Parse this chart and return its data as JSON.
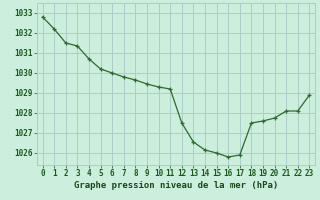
{
  "x": [
    0,
    1,
    2,
    3,
    4,
    5,
    6,
    7,
    8,
    9,
    10,
    11,
    12,
    13,
    14,
    15,
    16,
    17,
    18,
    19,
    20,
    21,
    22,
    23
  ],
  "y": [
    1032.8,
    1032.2,
    1031.5,
    1031.35,
    1030.7,
    1030.2,
    1030.0,
    1029.8,
    1029.65,
    1029.45,
    1029.3,
    1029.2,
    1027.5,
    1026.55,
    1026.15,
    1026.0,
    1025.8,
    1025.9,
    1027.5,
    1027.6,
    1027.75,
    1028.1,
    1028.1,
    1028.9
  ],
  "line_color": "#2d6a2d",
  "marker": "+",
  "bg_color": "#cceedd",
  "grid_color": "#aacccc",
  "xlabel": "Graphe pression niveau de la mer (hPa)",
  "xlabel_color": "#1a4a1a",
  "tick_color": "#1a5a1a",
  "ylim_min": 1025.4,
  "ylim_max": 1033.5,
  "yticks": [
    1026,
    1027,
    1028,
    1029,
    1030,
    1031,
    1032,
    1033
  ],
  "xticks": [
    0,
    1,
    2,
    3,
    4,
    5,
    6,
    7,
    8,
    9,
    10,
    11,
    12,
    13,
    14,
    15,
    16,
    17,
    18,
    19,
    20,
    21,
    22,
    23
  ],
  "tick_fontsize": 5.5,
  "xlabel_fontsize": 6.5
}
